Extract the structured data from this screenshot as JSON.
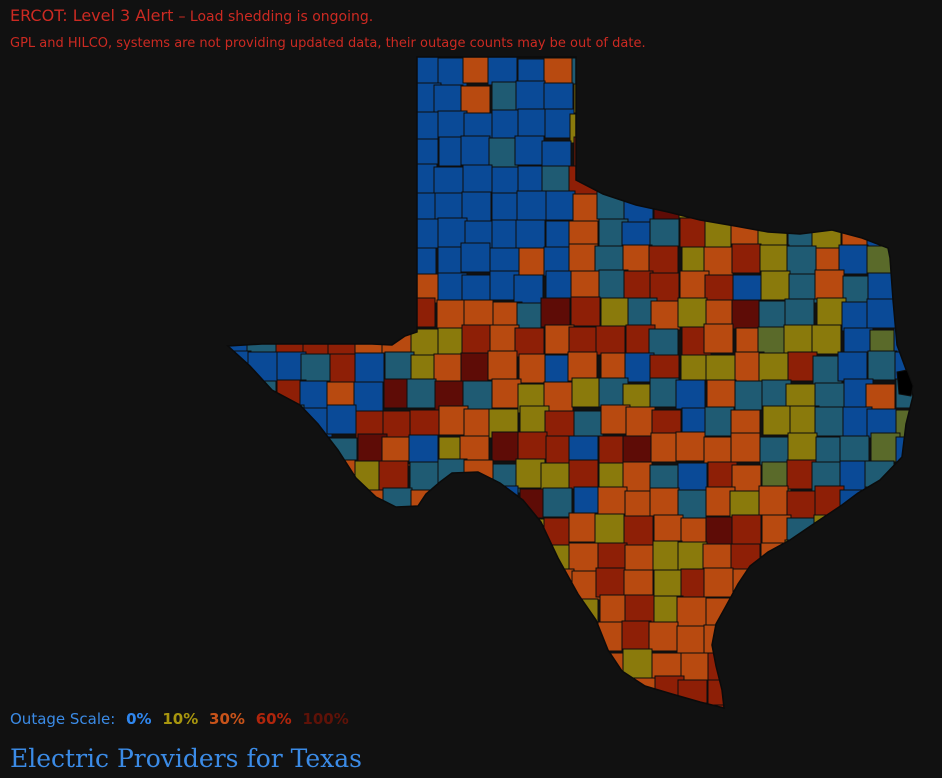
{
  "alert": {
    "title": "ERCOT: Level 3 Alert",
    "message": "– Load shedding is ongoing."
  },
  "data_warning": "GPL and HILCO, systems are not providing updated data, their outage counts may be out of date.",
  "map": {
    "region": "Texas",
    "colors": {
      "p0": "#0a4a97",
      "p10": "#8a7a0c",
      "p30": "#b84a10",
      "p60": "#8e1f06",
      "p100": "#5e0c06",
      "teal": "#1f5b73",
      "olive": "#5a6a2a",
      "border": "#0d0d0d",
      "no_data": "#000000"
    }
  },
  "scale": {
    "label": "Outage Scale:",
    "levels": [
      {
        "text": "0%",
        "color": "#2f86ee"
      },
      {
        "text": "10%",
        "color": "#a8960e"
      },
      {
        "text": "30%",
        "color": "#c8531a"
      },
      {
        "text": "60%",
        "color": "#b0250c"
      },
      {
        "text": "100%",
        "color": "#5e1208"
      }
    ]
  },
  "footer_title": "Electric Providers for Texas"
}
